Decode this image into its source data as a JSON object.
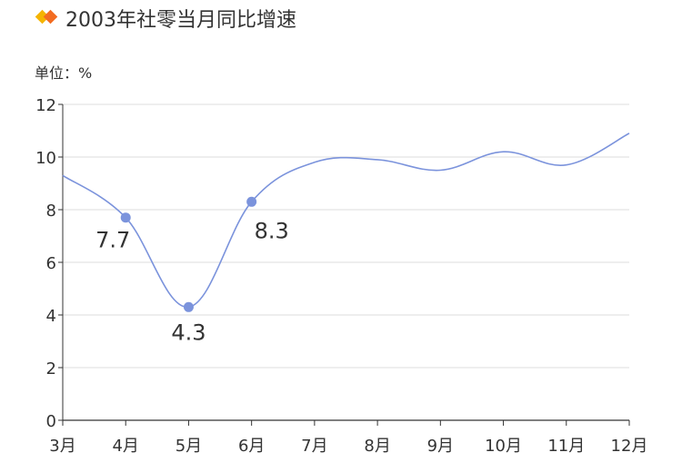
{
  "header": {
    "title": "2003年社零当月同比增速",
    "unit_label": "单位：%"
  },
  "colors": {
    "line": "#7b93dc",
    "point": "#7b93dc",
    "icon_orange": "#f36c21",
    "icon_yellow": "#f5b400",
    "grid": "#dedede",
    "axis": "#333333"
  },
  "chart_data": {
    "type": "line",
    "title": "2003年社零当月同比增速",
    "ylabel": "单位：%",
    "categories": [
      "3月",
      "4月",
      "5月",
      "6月",
      "7月",
      "8月",
      "9月",
      "10月",
      "11月",
      "12月"
    ],
    "series": [
      {
        "values": [
          9.3,
          7.7,
          4.3,
          8.3,
          9.8,
          9.9,
          9.5,
          10.2,
          9.7,
          10.9
        ],
        "labels": [
          null,
          "7.7",
          "4.3",
          "8.3",
          null,
          null,
          null,
          null,
          null,
          null
        ]
      }
    ],
    "yticks": [
      0,
      2,
      4,
      6,
      8,
      10,
      12
    ],
    "ylim": [
      0,
      12
    ],
    "grid": true,
    "legend": "none"
  }
}
